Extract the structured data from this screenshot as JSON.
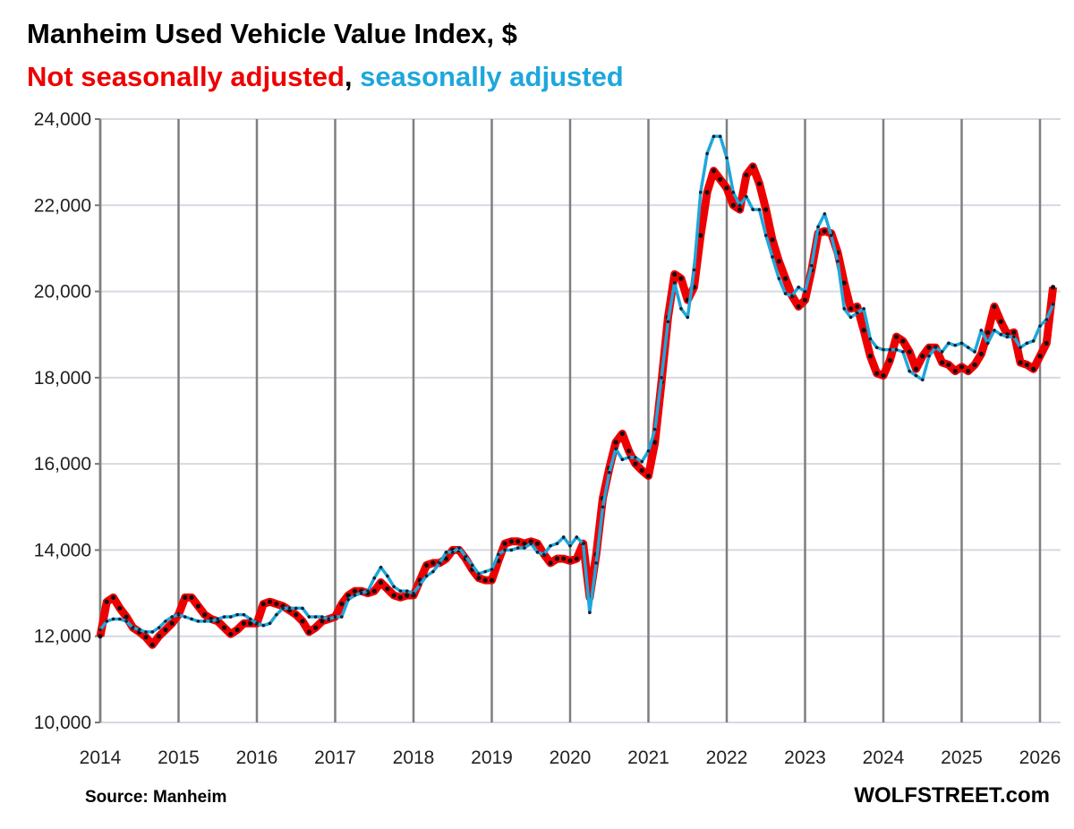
{
  "chart_data": {
    "type": "line",
    "title": "Manheim Used Vehicle Value Index, $",
    "subtitle_parts": [
      {
        "text": "Not seasonally adjusted",
        "color": "#ee0000"
      },
      {
        "text": ", ",
        "color": "#000000"
      },
      {
        "text": "seasonally adjusted",
        "color": "#1ea7dc"
      }
    ],
    "source": "Source: Manheim",
    "brand": "WOLFSTREET.com",
    "x_start": "2014-01",
    "frequency": "monthly",
    "xlim": [
      2014,
      2026
    ],
    "ylim": [
      10000,
      24000
    ],
    "x_ticks": [
      "2014",
      "2015",
      "2016",
      "2017",
      "2018",
      "2019",
      "2020",
      "2021",
      "2022",
      "2023",
      "2024",
      "2025",
      "2026"
    ],
    "y_ticks": [
      "10,000",
      "12,000",
      "14,000",
      "16,000",
      "18,000",
      "20,000",
      "22,000",
      "24,000"
    ],
    "grid": true,
    "series": [
      {
        "name": "Not seasonally adjusted",
        "color": "#ee0000",
        "values": [
          12000,
          12800,
          12900,
          12650,
          12450,
          12200,
          12100,
          11980,
          11800,
          12000,
          12150,
          12300,
          12500,
          12900,
          12900,
          12700,
          12500,
          12400,
          12350,
          12200,
          12050,
          12150,
          12300,
          12300,
          12300,
          12750,
          12800,
          12750,
          12700,
          12600,
          12500,
          12350,
          12100,
          12200,
          12350,
          12400,
          12450,
          12750,
          12950,
          13050,
          13050,
          13000,
          13050,
          13250,
          13100,
          12950,
          12900,
          12950,
          12950,
          13300,
          13650,
          13700,
          13700,
          13800,
          14000,
          14000,
          13800,
          13550,
          13350,
          13300,
          13300,
          13750,
          14150,
          14200,
          14200,
          14150,
          14200,
          14150,
          13900,
          13700,
          13800,
          13800,
          13750,
          13800,
          14150,
          12900,
          13900,
          15200,
          15900,
          16500,
          16700,
          16300,
          16000,
          15850,
          15720,
          16500,
          17900,
          19400,
          20400,
          20300,
          19800,
          20100,
          21300,
          22300,
          22800,
          22600,
          22400,
          22000,
          21900,
          22700,
          22900,
          22500,
          21900,
          21200,
          20700,
          20300,
          19900,
          19650,
          19800,
          20500,
          21350,
          21400,
          21350,
          20900,
          20200,
          19600,
          19650,
          19100,
          18500,
          18100,
          18050,
          18400,
          18950,
          18850,
          18600,
          18200,
          18500,
          18700,
          18700,
          18350,
          18300,
          18150,
          18250,
          18150,
          18300,
          18550,
          19050,
          19650,
          19300,
          19000,
          19050,
          18350,
          18300,
          18200,
          18500,
          18800,
          20100
        ]
      },
      {
        "name": "seasonally adjusted",
        "color": "#1ea7dc",
        "values": [
          12150,
          12350,
          12400,
          12400,
          12350,
          12200,
          12150,
          12100,
          12100,
          12200,
          12350,
          12450,
          12500,
          12450,
          12400,
          12350,
          12350,
          12350,
          12400,
          12450,
          12450,
          12500,
          12500,
          12400,
          12300,
          12250,
          12300,
          12500,
          12650,
          12650,
          12650,
          12650,
          12450,
          12450,
          12450,
          12400,
          12450,
          12450,
          12850,
          12950,
          13000,
          13050,
          13350,
          13600,
          13400,
          13150,
          13050,
          13050,
          13000,
          13200,
          13400,
          13500,
          13700,
          13950,
          13950,
          14050,
          13850,
          13650,
          13450,
          13500,
          13550,
          13900,
          14000,
          14000,
          14050,
          14050,
          14150,
          13950,
          13900,
          14100,
          14150,
          14300,
          14100,
          14300,
          14150,
          12550,
          13700,
          15000,
          15800,
          16350,
          16100,
          16150,
          16150,
          16050,
          16300,
          16800,
          18000,
          19300,
          20200,
          19600,
          19400,
          20500,
          22300,
          23200,
          23600,
          23600,
          23100,
          22300,
          22000,
          22200,
          21900,
          21900,
          21300,
          20800,
          20300,
          19950,
          19900,
          20100,
          20000,
          20600,
          21500,
          21800,
          21300,
          20700,
          19600,
          19400,
          19500,
          19600,
          18900,
          18700,
          18650,
          18650,
          18650,
          18600,
          18150,
          18050,
          17950,
          18500,
          18700,
          18600,
          18800,
          18750,
          18800,
          18700,
          18600,
          19100,
          18800,
          19100,
          19000,
          18950,
          18950,
          18700,
          18800,
          18850,
          19200,
          19350,
          19700
        ]
      }
    ]
  }
}
